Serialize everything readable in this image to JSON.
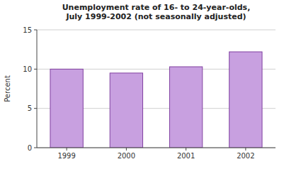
{
  "chart_data": {
    "type": "bar",
    "title": "Unemployment rate of 16- to 24-year-olds,\nJuly 1999-2002 (not seasonally adjusted)",
    "y_label": "Percent",
    "categories": [
      "1999",
      "2000",
      "2001",
      "2002"
    ],
    "values": [
      10.0,
      9.5,
      10.3,
      12.2
    ],
    "color": "#c8a0e0",
    "ylim": [
      0,
      15
    ],
    "yticks": [
      0,
      5,
      10,
      15
    ],
    "grid": true
  }
}
